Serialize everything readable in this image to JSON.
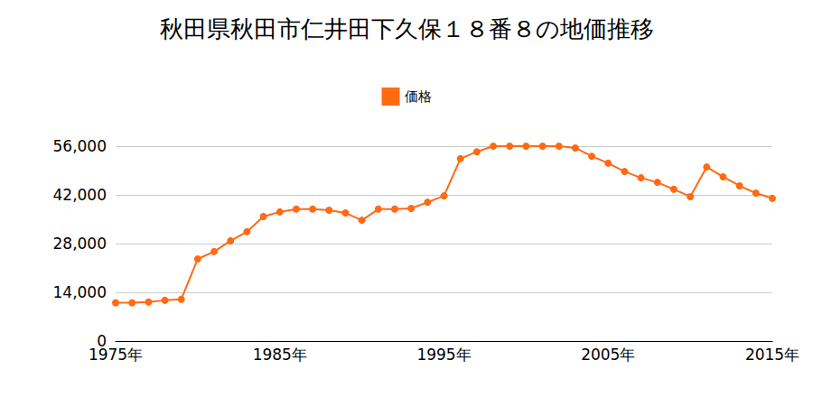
{
  "chart_data": {
    "type": "line",
    "title": "秋田県秋田市仁井田下久保１８番８の地価推移",
    "x": [
      1975,
      1976,
      1977,
      1978,
      1979,
      1980,
      1981,
      1982,
      1983,
      1984,
      1985,
      1986,
      1987,
      1988,
      1989,
      1990,
      1991,
      1992,
      1993,
      1994,
      1995,
      1996,
      1997,
      1998,
      1999,
      2000,
      2001,
      2002,
      2003,
      2004,
      2005,
      2006,
      2007,
      2008,
      2009,
      2010,
      2011,
      2012,
      2013,
      2014,
      2015
    ],
    "series": [
      {
        "name": "価格",
        "color": "#ff6a13",
        "marker": "circle",
        "values": [
          11000,
          11000,
          11200,
          11700,
          12000,
          23600,
          25700,
          28800,
          31400,
          35800,
          37100,
          37900,
          37900,
          37600,
          36800,
          34700,
          37900,
          37900,
          38100,
          39900,
          41700,
          52400,
          54400,
          56000,
          56000,
          56000,
          56000,
          56000,
          55500,
          53100,
          51100,
          48700,
          46900,
          45600,
          43600,
          41500,
          50000,
          47200,
          44600,
          42500,
          41000
        ]
      }
    ],
    "xlim": [
      1975,
      2015
    ],
    "xticks": [
      {
        "value": 1975,
        "label": "1975年"
      },
      {
        "value": 1985,
        "label": "1985年"
      },
      {
        "value": 1995,
        "label": "1995年"
      },
      {
        "value": 2005,
        "label": "2005年"
      },
      {
        "value": 2015,
        "label": "2015年"
      }
    ],
    "ylim": [
      0,
      56000
    ],
    "yticks": [
      0,
      {
        "value": 14000,
        "label": "14,000"
      },
      {
        "value": 28000,
        "label": "28,000"
      },
      {
        "value": 42000,
        "label": "42,000"
      },
      {
        "value": 56000,
        "label": "56,000"
      }
    ],
    "grid": true,
    "legend": "top"
  }
}
